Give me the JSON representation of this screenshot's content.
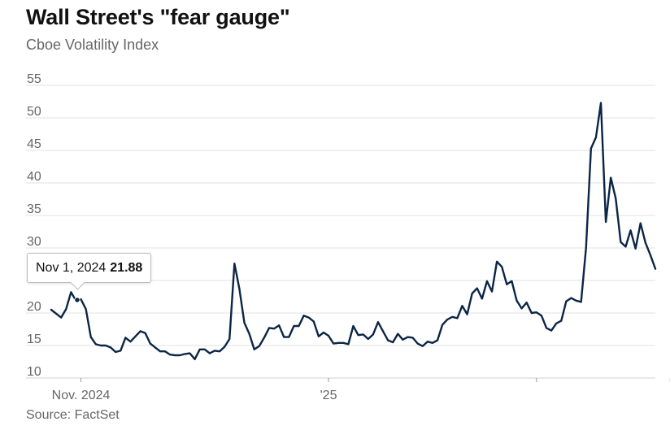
{
  "header": {
    "title": "Wall Street's \"fear gauge\"",
    "subtitle": "Cboe Volatility Index"
  },
  "footer": {
    "source": "Source: FactSet"
  },
  "tooltip": {
    "date": "Nov 1, 2024",
    "value": "21.88"
  },
  "colors": {
    "line": "#0b2545",
    "grid": "#e2e2e2",
    "axis_text": "#666666"
  },
  "chart_data": {
    "type": "line",
    "title": "Wall Street's \"fear gauge\"",
    "subtitle": "Cboe Volatility Index",
    "xlabel": "",
    "ylabel": "",
    "ylim": [
      10,
      55
    ],
    "yticks": [
      10,
      15,
      20,
      25,
      30,
      35,
      40,
      45,
      50,
      55
    ],
    "grid": true,
    "x_tick_labels": [
      {
        "index": 6,
        "label": "Nov. 2024"
      },
      {
        "index": 56,
        "label": "'25"
      },
      {
        "index": 98,
        "label": ""
      },
      {
        "index": 125,
        "label": ""
      }
    ],
    "series": [
      {
        "name": "Cboe Volatility Index",
        "values": [
          20.5,
          19.9,
          19.3,
          20.6,
          23.2,
          21.9,
          22.1,
          20.6,
          16.3,
          15.2,
          15.0,
          15.0,
          14.7,
          14.0,
          14.2,
          16.2,
          15.6,
          16.4,
          17.2,
          16.9,
          15.3,
          14.7,
          14.1,
          14.1,
          13.6,
          13.5,
          13.5,
          13.7,
          13.8,
          12.9,
          14.4,
          14.4,
          13.8,
          14.2,
          14.1,
          14.8,
          16.0,
          27.6,
          23.7,
          18.5,
          16.8,
          14.4,
          14.9,
          16.2,
          17.7,
          17.6,
          18.1,
          16.3,
          16.3,
          18.0,
          18.0,
          19.6,
          19.3,
          18.7,
          16.4,
          17.0,
          16.5,
          15.3,
          15.4,
          15.4,
          15.2,
          18.0,
          16.6,
          16.7,
          16.0,
          16.7,
          18.6,
          17.2,
          15.8,
          15.5,
          16.8,
          15.9,
          16.3,
          16.2,
          15.3,
          14.9,
          15.6,
          15.4,
          15.8,
          18.2,
          19.0,
          19.4,
          19.2,
          21.1,
          19.8,
          23.0,
          23.8,
          22.2,
          24.9,
          23.3,
          27.9,
          27.1,
          24.4,
          24.9,
          21.9,
          20.7,
          21.6,
          20.0,
          20.1,
          19.6,
          17.7,
          17.3,
          18.4,
          18.8,
          21.8,
          22.3,
          21.9,
          21.7,
          30.0,
          45.3,
          47.0,
          52.3,
          34.0,
          40.8,
          37.6,
          30.9,
          30.2,
          32.7,
          29.9,
          33.8,
          30.8,
          28.9,
          26.8
        ]
      }
    ],
    "annotations": [
      {
        "index": 5,
        "date": "Nov 1, 2024",
        "value": 21.88
      }
    ]
  }
}
